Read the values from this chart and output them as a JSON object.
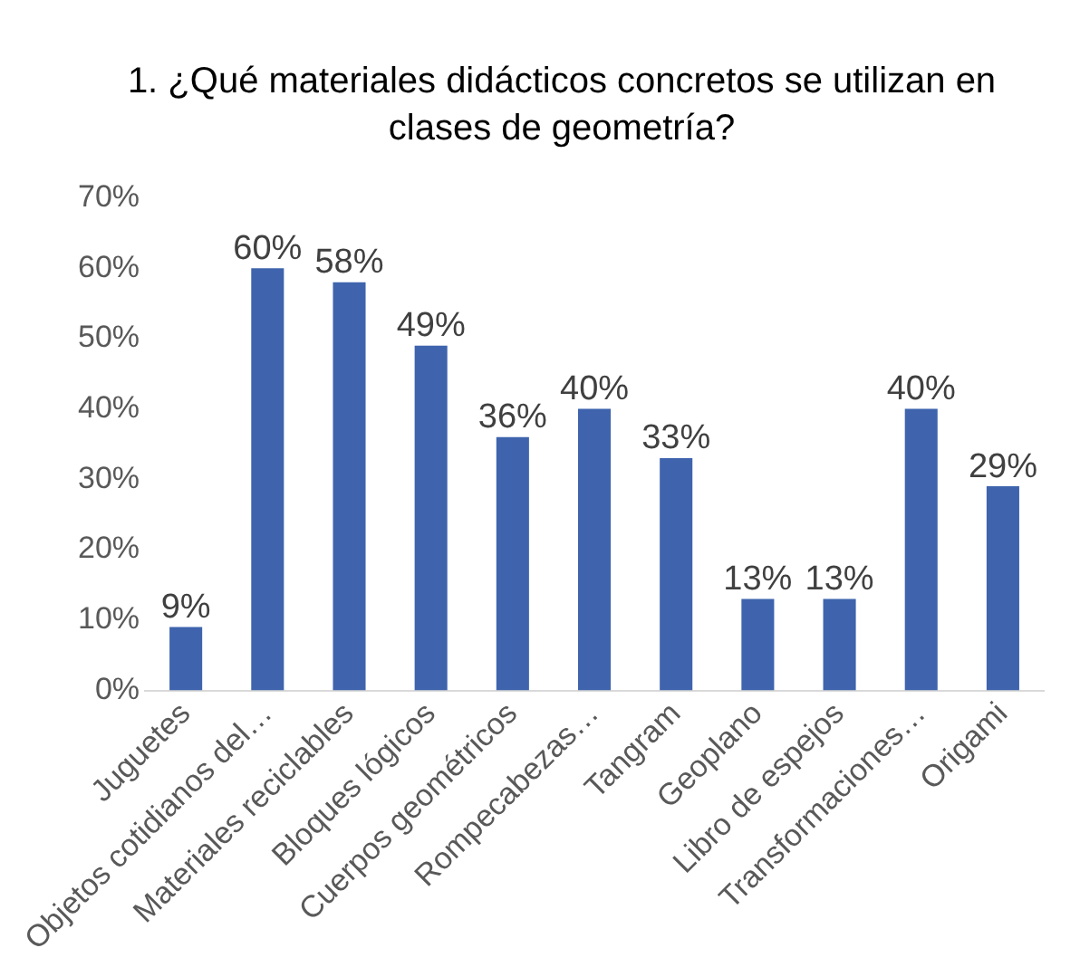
{
  "chart_data": {
    "type": "bar",
    "title": "1. ¿Qué materiales didácticos concretos se utilizan en clases de geometría?",
    "categories": [
      "Juguetes",
      "Objetos cotidianos del…",
      "Materiales reciclables",
      "Bloques lógicos",
      "Cuerpos geométricos",
      "Rompecabezas…",
      "Tangram",
      "Geoplano",
      "Libro de espejos",
      "Transformaciones…",
      "Origami"
    ],
    "values": [
      9,
      60,
      58,
      49,
      36,
      40,
      33,
      13,
      13,
      40,
      29
    ],
    "value_labels": [
      "9%",
      "60%",
      "58%",
      "49%",
      "36%",
      "40%",
      "33%",
      "13%",
      "13%",
      "40%",
      "29%"
    ],
    "color": "#3f64ad",
    "ylim": [
      0,
      70
    ],
    "yticks": [
      {
        "value": 0,
        "label": "0%"
      },
      {
        "value": 10,
        "label": "10%"
      },
      {
        "value": 20,
        "label": "20%"
      },
      {
        "value": 30,
        "label": "30%"
      },
      {
        "value": 40,
        "label": "40%"
      },
      {
        "value": 50,
        "label": "50%"
      },
      {
        "value": 60,
        "label": "60%"
      },
      {
        "value": 70,
        "label": "70%"
      }
    ],
    "grid": false,
    "legend": false
  }
}
